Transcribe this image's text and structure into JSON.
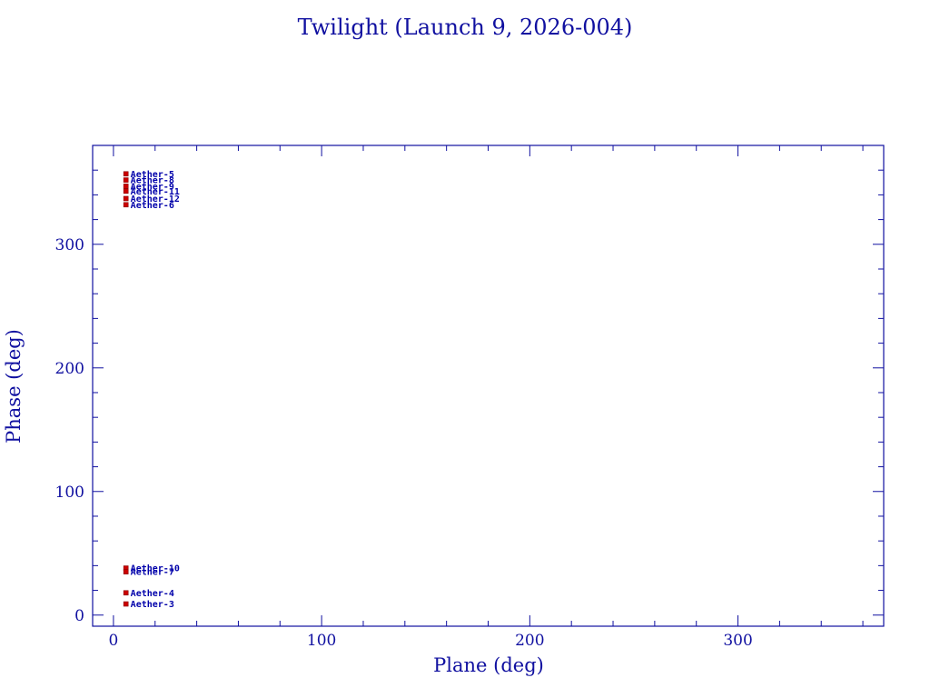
{
  "chart_data": {
    "type": "scatter",
    "title": "Twilight (Launch 9, 2026-004)",
    "xlabel": "Plane (deg)",
    "ylabel": "Phase (deg)",
    "xlim": [
      -10,
      370
    ],
    "ylim": [
      -9,
      380
    ],
    "xticks": [
      0,
      100,
      200,
      300
    ],
    "yticks": [
      0,
      100,
      200,
      300
    ],
    "grid": false,
    "legend": "none",
    "points": [
      {
        "label": "Aether-5",
        "x": 6,
        "y": 357
      },
      {
        "label": "Aether-8",
        "x": 6,
        "y": 352
      },
      {
        "label": "Aether-9",
        "x": 6,
        "y": 347
      },
      {
        "label": "Aether-11",
        "x": 6,
        "y": 343
      },
      {
        "label": "Aether-12",
        "x": 6,
        "y": 337
      },
      {
        "label": "Aether-6",
        "x": 6,
        "y": 332
      },
      {
        "label": "Aether-10",
        "x": 6,
        "y": 38
      },
      {
        "label": "Aether-7",
        "x": 6,
        "y": 35
      },
      {
        "label": "Aether-4",
        "x": 6,
        "y": 18
      },
      {
        "label": "Aether-3",
        "x": 6,
        "y": 9
      }
    ],
    "colors": {
      "axes": "#1010a0",
      "marker": "#cc0000",
      "point_label": "#0000aa"
    }
  }
}
